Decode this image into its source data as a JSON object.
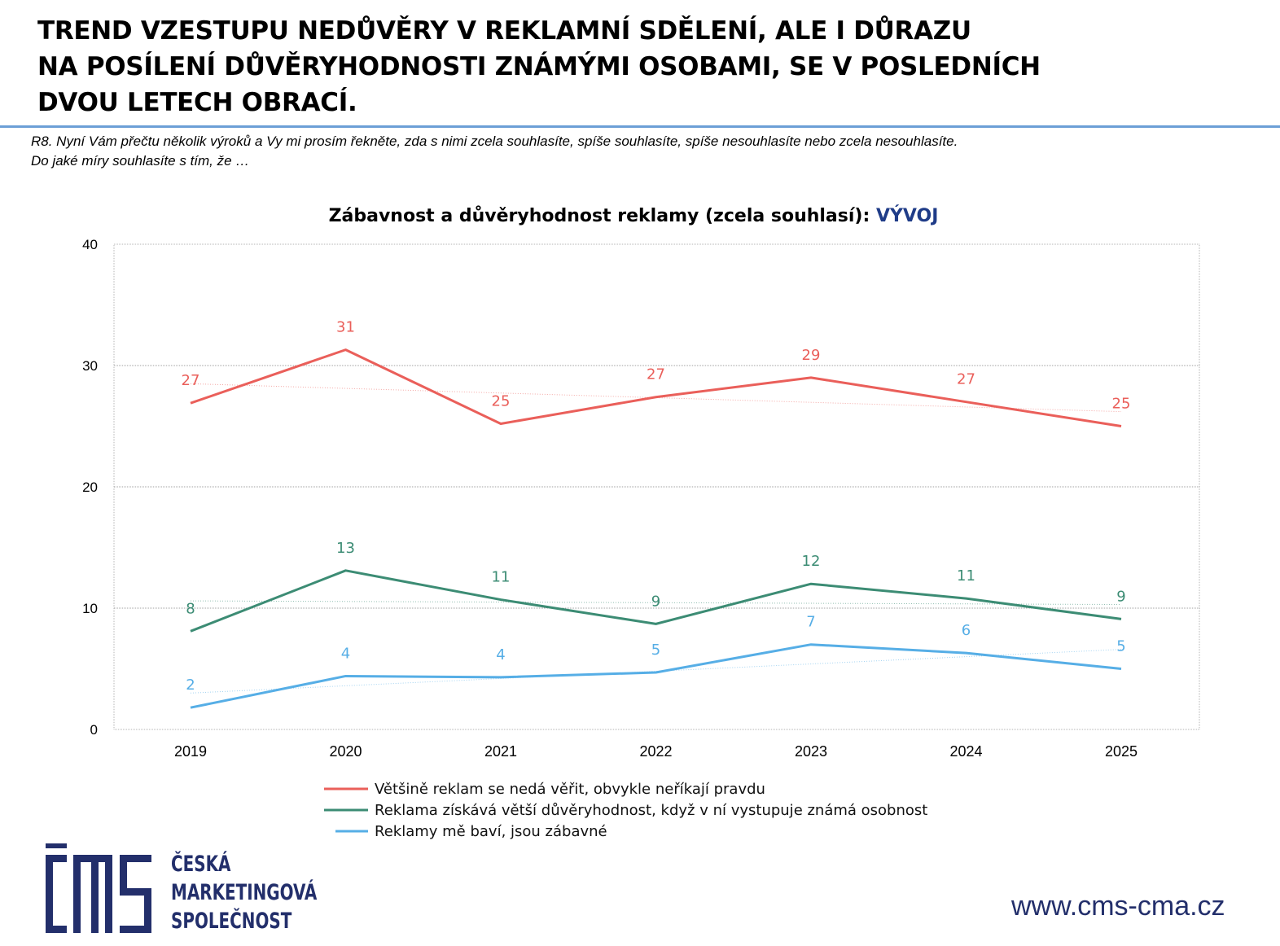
{
  "headline": {
    "line1": "TREND VZESTUPU NEDŮVĚRY V REKLAMNÍ SDĚLENÍ, ALE I DŮRAZU",
    "line2": "NA POSÍLENÍ DŮVĚRYHODNOSTI ZNÁMÝMI OSOBAMI, SE V POSLEDNÍCH",
    "line3": "DVOU LETECH OBRACÍ."
  },
  "question": {
    "line1": "R8. Nyní Vám přečtu několik výroků a Vy mi prosím řekněte, zda s nimi zcela souhlasíte, spíše souhlasíte, spíše nesouhlasíte nebo zcela nesouhlasíte.",
    "line2": "Do jaké míry souhlasíte s tím, že …"
  },
  "colors": {
    "accent_rule": "#6c9fd6",
    "brand_navy": "#232f6b",
    "title_highlight": "#1f3c88"
  },
  "chart_data": {
    "type": "line",
    "title": "Zábavnost a důvěryhodnost reklamy (zcela souhlasí): ",
    "title_highlight": "VÝVOJ",
    "x": [
      "2019",
      "2020",
      "2021",
      "2022",
      "2023",
      "2024",
      "2025"
    ],
    "xlabel": "",
    "ylabel": "",
    "ylim": [
      0,
      40
    ],
    "yticks": [
      0,
      10,
      20,
      30,
      40
    ],
    "grid": true,
    "legend_position": "bottom",
    "series": [
      {
        "name": "Většině reklam se nedá věřit, obvykle neříkají pravdu",
        "color": "#ea5f5a",
        "values": [
          26.9,
          31.3,
          25.2,
          27.4,
          29.0,
          27.0,
          25.0
        ],
        "labels": [
          "27",
          "31",
          "25",
          "27",
          "29",
          "27",
          "25"
        ],
        "trend": [
          28.5,
          26.2
        ]
      },
      {
        "name": "Reklama získává větší důvěryhodnost, když v ní vystupuje známá osobnost",
        "color": "#3c8c74",
        "values": [
          8.1,
          13.1,
          10.7,
          8.7,
          12.0,
          10.8,
          9.1
        ],
        "labels": [
          "8",
          "13",
          "11",
          "9",
          "12",
          "11",
          "9"
        ],
        "trend": [
          10.6,
          10.3
        ]
      },
      {
        "name": "Reklamy mě baví, jsou zábavné",
        "color": "#56aee6",
        "values": [
          1.8,
          4.4,
          4.3,
          4.7,
          7.0,
          6.3,
          5.0
        ],
        "labels": [
          "2",
          "4",
          "4",
          "5",
          "7",
          "6",
          "5"
        ],
        "trend": [
          3.0,
          6.6
        ]
      }
    ]
  },
  "logo": {
    "line1": "ČESKÁ",
    "line2": "MARKETINGOVÁ",
    "line3": "SPOLEČNOST"
  },
  "website": "www.cms-cma.cz"
}
